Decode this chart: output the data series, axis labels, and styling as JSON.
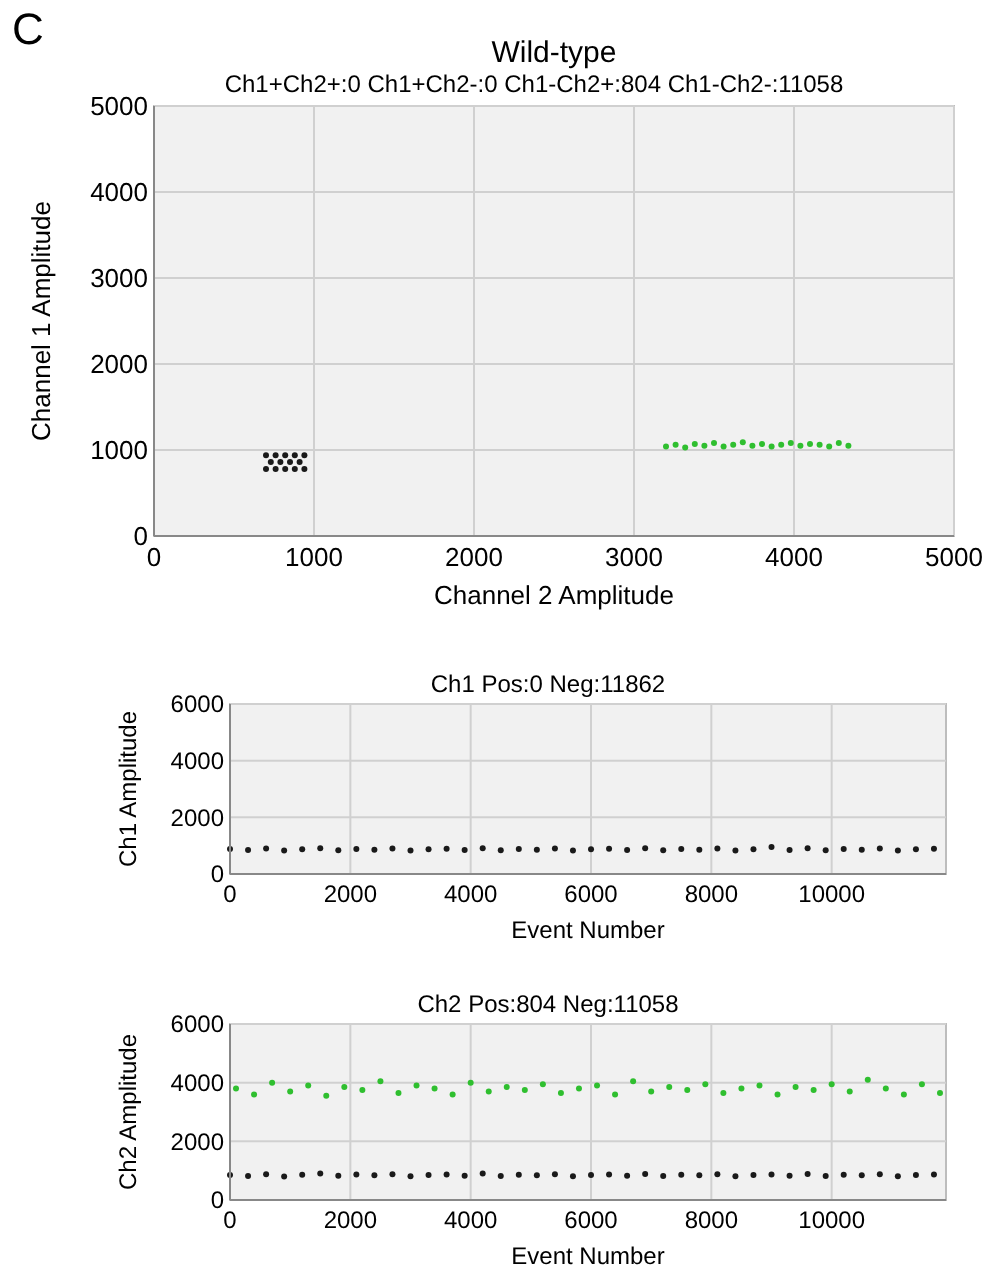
{
  "chart_data": [
    {
      "type": "scatter",
      "title": "Wild-type",
      "subtitle": "Ch1+Ch2+:0 Ch1+Ch2-:0 Ch1-Ch2+:804 Ch1-Ch2-:11058",
      "xlabel": "Channel 2 Amplitude",
      "ylabel": "Channel 1 Amplitude",
      "annotations": [
        "C"
      ],
      "xlim": [
        0,
        5000
      ],
      "ylim": [
        0,
        5000
      ],
      "xticks": [
        0,
        1000,
        2000,
        3000,
        4000,
        5000
      ],
      "yticks": [
        0,
        1000,
        2000,
        3000,
        4000,
        5000
      ],
      "grid": true,
      "marker": "circle",
      "series": [
        {
          "color": "#1a1a1a",
          "x": [
            700,
            760,
            820,
            880,
            940,
            730,
            790,
            850,
            910,
            700,
            760,
            820,
            880,
            940
          ],
          "values": [
            780,
            780,
            780,
            780,
            780,
            860,
            860,
            860,
            860,
            940,
            940,
            940,
            940,
            940
          ]
        },
        {
          "color": "#2fbf2f",
          "x": [
            3200,
            3260,
            3320,
            3380,
            3440,
            3500,
            3560,
            3620,
            3680,
            3740,
            3800,
            3860,
            3920,
            3980,
            4040,
            4100,
            4160,
            4220,
            4280,
            4340
          ],
          "values": [
            1040,
            1060,
            1030,
            1070,
            1050,
            1080,
            1040,
            1060,
            1090,
            1050,
            1070,
            1040,
            1060,
            1080,
            1050,
            1070,
            1060,
            1040,
            1080,
            1050
          ]
        }
      ]
    },
    {
      "type": "scatter",
      "title": "Ch1 Pos:0 Neg:11862",
      "xlabel": "Event Number",
      "ylabel": "Ch1 Amplitude",
      "xlim": [
        0,
        11900
      ],
      "ylim": [
        0,
        6000
      ],
      "xticks": [
        0,
        2000,
        4000,
        6000,
        8000,
        10000
      ],
      "yticks": [
        0,
        2000,
        4000,
        6000
      ],
      "grid": true,
      "marker": "circle",
      "series": [
        {
          "color": "#1a1a1a",
          "x": [
            0,
            300,
            600,
            900,
            1200,
            1500,
            1800,
            2100,
            2400,
            2700,
            3000,
            3300,
            3600,
            3900,
            4200,
            4500,
            4800,
            5100,
            5400,
            5700,
            6000,
            6300,
            6600,
            6900,
            7200,
            7500,
            7800,
            8100,
            8400,
            8700,
            9000,
            9300,
            9600,
            9900,
            10200,
            10500,
            10800,
            11100,
            11400,
            11700
          ],
          "values": [
            880,
            850,
            900,
            830,
            870,
            910,
            840,
            880,
            860,
            900,
            830,
            870,
            890,
            850,
            910,
            840,
            880,
            860,
            900,
            830,
            870,
            890,
            850,
            910,
            840,
            880,
            860,
            900,
            830,
            870,
            950,
            850,
            910,
            840,
            880,
            860,
            900,
            830,
            870,
            890
          ]
        }
      ]
    },
    {
      "type": "scatter",
      "title": "Ch2 Pos:804 Neg:11058",
      "xlabel": "Event Number",
      "ylabel": "Ch2 Amplitude",
      "xlim": [
        0,
        11900
      ],
      "ylim": [
        0,
        6000
      ],
      "xticks": [
        0,
        2000,
        4000,
        6000,
        8000,
        10000
      ],
      "yticks": [
        0,
        2000,
        4000,
        6000
      ],
      "grid": true,
      "marker": "circle",
      "series": [
        {
          "color": "#2fbf2f",
          "x": [
            100,
            400,
            700,
            1000,
            1300,
            1600,
            1900,
            2200,
            2500,
            2800,
            3100,
            3400,
            3700,
            4000,
            4300,
            4600,
            4900,
            5200,
            5500,
            5800,
            6100,
            6400,
            6700,
            7000,
            7300,
            7600,
            7900,
            8200,
            8500,
            8800,
            9100,
            9400,
            9700,
            10000,
            10300,
            10600,
            10900,
            11200,
            11500,
            11800
          ],
          "values": [
            3800,
            3600,
            4000,
            3700,
            3900,
            3550,
            3850,
            3750,
            4050,
            3650,
            3900,
            3800,
            3600,
            4000,
            3700,
            3850,
            3750,
            3950,
            3650,
            3800,
            3900,
            3600,
            4050,
            3700,
            3850,
            3750,
            3950,
            3650,
            3800,
            3900,
            3600,
            3850,
            3750,
            3950,
            3700,
            4100,
            3800,
            3600,
            3950,
            3650
          ]
        },
        {
          "color": "#1a1a1a",
          "x": [
            0,
            300,
            600,
            900,
            1200,
            1500,
            1800,
            2100,
            2400,
            2700,
            3000,
            3300,
            3600,
            3900,
            4200,
            4500,
            4800,
            5100,
            5400,
            5700,
            6000,
            6300,
            6600,
            6900,
            7200,
            7500,
            7800,
            8100,
            8400,
            8700,
            9000,
            9300,
            9600,
            9900,
            10200,
            10500,
            10800,
            11100,
            11400,
            11700
          ],
          "values": [
            850,
            820,
            880,
            800,
            860,
            900,
            830,
            870,
            840,
            880,
            810,
            850,
            870,
            830,
            900,
            820,
            860,
            840,
            880,
            810,
            850,
            870,
            830,
            890,
            820,
            860,
            840,
            880,
            810,
            850,
            870,
            830,
            890,
            820,
            860,
            840,
            880,
            810,
            850,
            870
          ]
        }
      ]
    }
  ]
}
